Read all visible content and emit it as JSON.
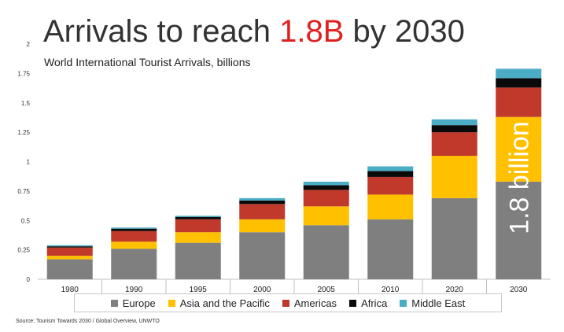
{
  "title": {
    "prefix": "Arrivals to reach ",
    "highlight": "1.8B",
    "suffix": " by 2030"
  },
  "subtitle": "World International Tourist Arrivals, billions",
  "source": "Source: Tourism Towards 2030 / Global Overview, UNWTO",
  "colors": {
    "Europe": "#7f7f7f",
    "Asia and the Pacific": "#ffc000",
    "Americas": "#c0392b",
    "Africa": "#0a0a0a",
    "Middle East": "#4bacc6"
  },
  "chart_data": {
    "type": "bar",
    "stacked": true,
    "title": "Arrivals to reach 1.8B by 2030",
    "subtitle": "World International Tourist Arrivals, billions",
    "xlabel": "",
    "ylabel": "",
    "ylim": [
      0,
      2
    ],
    "yticks": [
      "0",
      "0.25",
      "0.5",
      "0.75",
      "1",
      "1.25",
      "1.5",
      "1.75",
      "2"
    ],
    "categories": [
      "1980",
      "1990",
      "1995",
      "2000",
      "2005",
      "2010",
      "2020",
      "2030"
    ],
    "series": [
      {
        "name": "Europe",
        "values": [
          0.17,
          0.26,
          0.31,
          0.4,
          0.46,
          0.51,
          0.69,
          0.83
        ]
      },
      {
        "name": "Asia and the Pacific",
        "values": [
          0.03,
          0.06,
          0.09,
          0.11,
          0.16,
          0.21,
          0.36,
          0.55
        ]
      },
      {
        "name": "Americas",
        "values": [
          0.07,
          0.09,
          0.11,
          0.13,
          0.14,
          0.15,
          0.2,
          0.25
        ]
      },
      {
        "name": "Africa",
        "values": [
          0.01,
          0.02,
          0.02,
          0.03,
          0.04,
          0.05,
          0.06,
          0.08
        ]
      },
      {
        "name": "Middle East",
        "values": [
          0.01,
          0.01,
          0.01,
          0.02,
          0.03,
          0.04,
          0.05,
          0.08
        ]
      }
    ],
    "legend": [
      "Europe",
      "Asia and the Pacific",
      "Americas",
      "Africa",
      "Middle East"
    ],
    "legend_position": "bottom",
    "annotation": "1.8 billion",
    "grid": false
  }
}
